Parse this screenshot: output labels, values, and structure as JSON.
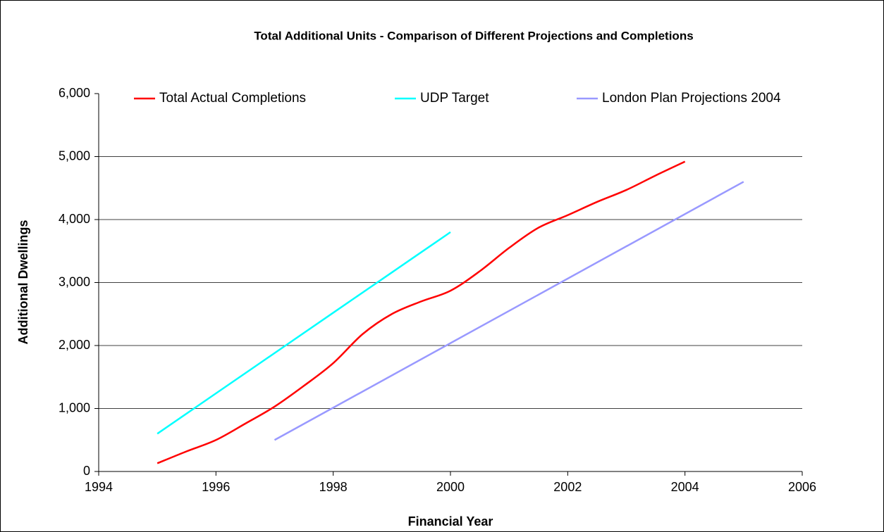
{
  "chart_data": {
    "type": "line",
    "title": "Total Additional Units - Comparison of Different Projections and Completions",
    "x_label": "Financial Year",
    "y_label": "Additional Dwellings",
    "xlim": [
      1994,
      2006
    ],
    "xticks": [
      1994,
      1996,
      1998,
      2000,
      2002,
      2004,
      2006
    ],
    "ylim": [
      0,
      6000
    ],
    "yticks": [
      0,
      {
        "value": 1000,
        "label": "1,000"
      },
      {
        "value": 2000,
        "label": "2,000"
      },
      {
        "value": 3000,
        "label": "3,000"
      },
      {
        "value": 4000,
        "label": "4,000"
      },
      {
        "value": 5000,
        "label": "5,000"
      },
      {
        "value": 6000,
        "label": "6,000"
      }
    ],
    "grid": true,
    "legend": "top",
    "smooth": true,
    "series": [
      {
        "name": "Total Actual Completions",
        "color": "#ff0000",
        "x": [
          1995,
          1995.5,
          1996,
          1996.5,
          1997,
          1997.5,
          1998,
          1998.5,
          1999,
          1999.5,
          2000,
          2000.5,
          2001,
          2001.5,
          2002,
          2002.5,
          2003,
          2003.5,
          2004
        ],
        "values": [
          130,
          320,
          500,
          760,
          1030,
          1360,
          1720,
          2180,
          2500,
          2700,
          2870,
          3180,
          3550,
          3870,
          4070,
          4280,
          4470,
          4700,
          4920
        ]
      },
      {
        "name": "UDP Target",
        "color": "#00ffff",
        "x": [
          1995,
          1996,
          1997,
          1998,
          1999,
          2000
        ],
        "values": [
          600,
          1240,
          1880,
          2520,
          3160,
          3800
        ]
      },
      {
        "name": "London Plan Projections 2004",
        "color": "#9999ff",
        "x": [
          1997,
          2005
        ],
        "values": [
          500,
          4600
        ]
      }
    ]
  }
}
